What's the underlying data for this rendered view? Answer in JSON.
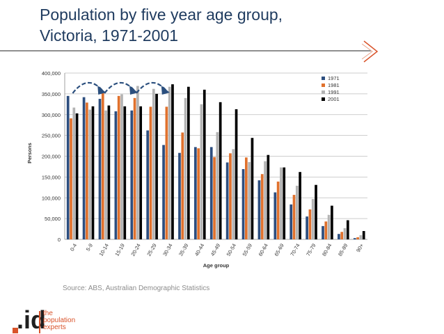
{
  "slide": {
    "title_line1": "Population by five year age group,",
    "title_line2": "Victoria, 1971-2001",
    "source": "Source: ABS, Australian Demographic Statistics"
  },
  "logo": {
    "mark": ".id",
    "line1": "the",
    "line2": "population",
    "line3": "experts"
  },
  "colors": {
    "title": "#1f3b5f",
    "accent": "#d9532a",
    "arrow": "#2b4f7e"
  },
  "chart_data": {
    "type": "bar",
    "title": "",
    "xlabel": "Age group",
    "ylabel": "Persons",
    "ylim": [
      0,
      400000
    ],
    "yticks": [
      0,
      50000,
      100000,
      150000,
      200000,
      250000,
      300000,
      350000,
      400000
    ],
    "ytick_labels": [
      "0",
      "50,000",
      "100,000",
      "150,000",
      "200,000",
      "250,000",
      "300,000",
      "350,000",
      "400,000"
    ],
    "grid": true,
    "legend": "top-right",
    "categories": [
      "0-4",
      "5-9",
      "10-14",
      "15-19",
      "20-24",
      "25-29",
      "30-34",
      "35-39",
      "40-44",
      "45-49",
      "50-54",
      "55-59",
      "60-64",
      "65-69",
      "70-74",
      "75-79",
      "80-84",
      "85-89",
      "90+"
    ],
    "series": [
      {
        "name": "1971",
        "color": "#2d4e7f",
        "values": [
          345000,
          342000,
          338000,
          308000,
          310000,
          262000,
          227000,
          208000,
          222000,
          222000,
          185000,
          169000,
          142000,
          113000,
          84000,
          55000,
          32000,
          13000,
          3000
        ]
      },
      {
        "name": "1981",
        "color": "#e0712d",
        "values": [
          291000,
          329000,
          354000,
          345000,
          340000,
          319000,
          319000,
          257000,
          219000,
          198000,
          207000,
          197000,
          157000,
          139000,
          107000,
          72000,
          43000,
          18000,
          5000
        ]
      },
      {
        "name": "1991",
        "color": "#b4b4b4",
        "values": [
          317000,
          312000,
          310000,
          349000,
          369000,
          362000,
          367000,
          340000,
          325000,
          258000,
          217000,
          186000,
          188000,
          173000,
          129000,
          97000,
          59000,
          27000,
          10000
        ]
      },
      {
        "name": "2001",
        "color": "#000000",
        "values": [
          303000,
          320000,
          322000,
          320000,
          320000,
          350000,
          373000,
          367000,
          360000,
          330000,
          313000,
          244000,
          203000,
          173000,
          162000,
          131000,
          81000,
          46000,
          20000
        ]
      }
    ],
    "annotations": [
      {
        "type": "cohort-arrow",
        "from": "0-4",
        "to": "10-14"
      },
      {
        "type": "cohort-arrow",
        "from": "10-14",
        "to": "20-24"
      },
      {
        "type": "cohort-arrow",
        "from": "20-24",
        "to": "30-34"
      }
    ]
  }
}
